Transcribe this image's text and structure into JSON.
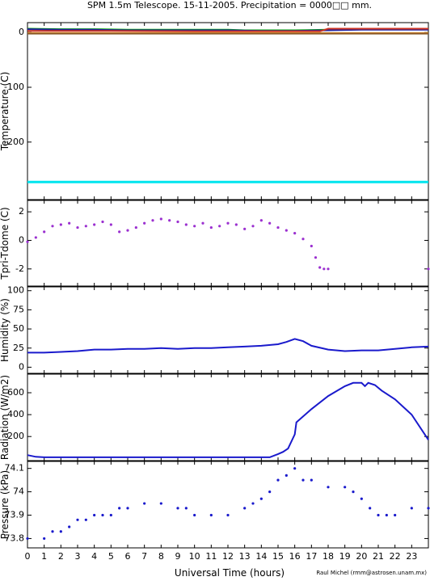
{
  "title": "SPM 1.5m Telescope. 15-11-2005. Precipitation = 0000□□ mm.",
  "credit": "Raul Michel (rmm@astrosen.unam.mx)",
  "chart_data": [
    {
      "type": "line",
      "ylabel": "Temperature (C)",
      "ylim": [
        -305,
        18
      ],
      "yticks": [
        0,
        -100,
        -200
      ],
      "xlim": [
        0,
        24
      ],
      "series": [
        {
          "color": "#00aa00",
          "x": [
            0,
            2,
            4,
            6,
            8,
            10,
            12,
            13,
            14,
            16,
            18,
            20,
            22,
            24
          ],
          "y": [
            7,
            6,
            6,
            5,
            5,
            5,
            5,
            4,
            4,
            4,
            5,
            6,
            6,
            6
          ]
        },
        {
          "color": "#1f1f9f",
          "x": [
            0,
            2,
            4,
            6,
            8,
            10,
            12,
            14,
            16,
            18,
            20,
            22,
            24
          ],
          "y": [
            6,
            5,
            5,
            4,
            4,
            4,
            4,
            3,
            3,
            4,
            5,
            5,
            5
          ]
        },
        {
          "color": "#cc3322",
          "x": [
            0,
            5,
            10,
            15,
            17.5,
            18,
            24
          ],
          "y": [
            3,
            3,
            2,
            2,
            2,
            7,
            7
          ]
        },
        {
          "color": "#e08a1e",
          "x": [
            0,
            24
          ],
          "y": [
            -1,
            -1
          ]
        },
        {
          "color": "#8b5a2b",
          "x": [
            0,
            24
          ],
          "y": [
            -2,
            -2
          ]
        },
        {
          "color": "#00e5ee",
          "x": [
            0,
            24
          ],
          "y": [
            -273,
            -273
          ]
        }
      ]
    },
    {
      "type": "scatter",
      "ylabel": "Tpri-Tdome (C)",
      "ylim": [
        -3.2,
        2.8
      ],
      "yticks": [
        2,
        0,
        -2
      ],
      "xlim": [
        0,
        24
      ],
      "series": [
        {
          "color": "#9b30d0",
          "x": [
            0,
            0.5,
            1,
            1.5,
            2,
            2.5,
            3,
            3.5,
            4,
            4.5,
            5,
            5.5,
            6,
            6.5,
            7,
            7.5,
            8,
            8.5,
            9,
            9.5,
            10,
            10.5,
            11,
            11.5,
            12,
            12.5,
            13,
            13.5,
            14,
            14.5,
            15,
            15.5,
            16,
            16.5,
            17,
            17.25,
            17.5,
            17.75,
            18,
            24
          ],
          "y": [
            -0.1,
            0.2,
            0.6,
            1.0,
            1.1,
            1.2,
            0.9,
            1.0,
            1.1,
            1.3,
            1.1,
            0.6,
            0.7,
            0.9,
            1.2,
            1.4,
            1.5,
            1.4,
            1.3,
            1.1,
            1.0,
            1.2,
            0.9,
            1.0,
            1.2,
            1.1,
            0.8,
            1.0,
            1.4,
            1.2,
            0.9,
            0.7,
            0.5,
            0.1,
            -0.4,
            -1.2,
            -1.9,
            -2.0,
            -2.0,
            -2.0
          ]
        }
      ]
    },
    {
      "type": "line",
      "ylabel": "Humidity (%)",
      "ylim": [
        -8,
        105
      ],
      "yticks": [
        0,
        25,
        50,
        75,
        100
      ],
      "xlim": [
        0,
        24
      ],
      "series": [
        {
          "color": "#1a1acc",
          "x": [
            0,
            1,
            2,
            3,
            4,
            5,
            6,
            7,
            8,
            9,
            10,
            11,
            12,
            13,
            14,
            15,
            15.5,
            16,
            16.5,
            17,
            18,
            19,
            20,
            21,
            22,
            23,
            24
          ],
          "y": [
            19,
            19,
            20,
            21,
            23,
            23,
            24,
            24,
            25,
            24,
            25,
            25,
            26,
            27,
            28,
            30,
            33,
            37,
            34,
            28,
            23,
            21,
            22,
            22,
            24,
            26,
            27
          ]
        }
      ]
    },
    {
      "type": "line",
      "ylabel": "Radiation (W/m2)",
      "ylim": [
        -20,
        770
      ],
      "yticks": [
        200,
        400,
        600
      ],
      "xlim": [
        0,
        24
      ],
      "series": [
        {
          "color": "#1a1acc",
          "x": [
            0,
            0.5,
            1,
            5,
            10,
            14.5,
            15,
            15.3,
            15.6,
            16,
            16.1,
            17,
            18,
            19,
            19.5,
            20,
            20.2,
            20.4,
            20.8,
            21.2,
            22,
            23,
            24
          ],
          "y": [
            30,
            15,
            10,
            10,
            10,
            10,
            40,
            60,
            90,
            220,
            330,
            450,
            570,
            660,
            690,
            690,
            660,
            690,
            670,
            620,
            540,
            400,
            170
          ]
        }
      ]
    },
    {
      "type": "scatter",
      "ylabel": "Pressure (kPa)",
      "ylim": [
        73.76,
        74.13
      ],
      "yticks": [
        73.8,
        73.9,
        74,
        74.1
      ],
      "xlim": [
        0,
        24
      ],
      "xticks": [
        0,
        1,
        2,
        3,
        4,
        5,
        6,
        7,
        8,
        9,
        10,
        11,
        12,
        13,
        14,
        15,
        16,
        17,
        18,
        19,
        20,
        21,
        22,
        23
      ],
      "xlabel": "Universal Time (hours)",
      "series": [
        {
          "color": "#1a1acc",
          "x": [
            0,
            1,
            1.5,
            2,
            2.5,
            3,
            3.5,
            4,
            4.5,
            5,
            5.5,
            6,
            7,
            8,
            9,
            9.5,
            10,
            11,
            12,
            13,
            13.5,
            14,
            14.5,
            15,
            15.5,
            16,
            16.5,
            17,
            18,
            19,
            19.5,
            20,
            20.5,
            21,
            21.5,
            22,
            23,
            24
          ],
          "y": [
            73.8,
            73.8,
            73.83,
            73.83,
            73.85,
            73.88,
            73.88,
            73.9,
            73.9,
            73.9,
            73.93,
            73.93,
            73.95,
            73.95,
            73.93,
            73.93,
            73.9,
            73.9,
            73.9,
            73.93,
            73.95,
            73.97,
            74.0,
            74.05,
            74.07,
            74.1,
            74.05,
            74.05,
            74.02,
            74.02,
            74.0,
            73.97,
            73.93,
            73.9,
            73.9,
            73.9,
            73.93,
            73.93
          ]
        }
      ]
    }
  ]
}
